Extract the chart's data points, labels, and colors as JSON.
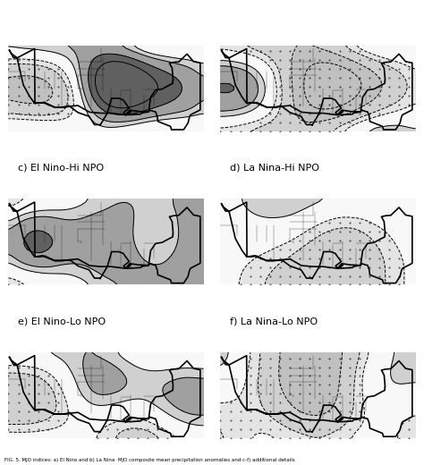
{
  "panels": [
    {
      "label": "",
      "row": 0,
      "col": 0
    },
    {
      "label": "",
      "row": 0,
      "col": 1
    },
    {
      "label": "c) El Nino-Hi NPO",
      "row": 1,
      "col": 0
    },
    {
      "label": "d) La Nina-Hi NPO",
      "row": 1,
      "col": 1
    },
    {
      "label": "e) El Nino-Lo NPO",
      "row": 2,
      "col": 0
    },
    {
      "label": "f) La Nina-Lo NPO",
      "row": 2,
      "col": 1
    }
  ],
  "background_color": "#ffffff",
  "label_fontsize": 8
}
